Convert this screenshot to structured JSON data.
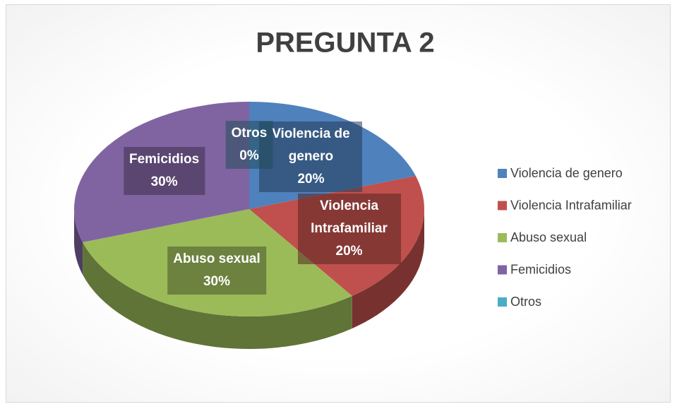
{
  "chart_data": {
    "type": "pie",
    "title": "PREGUNTA 2",
    "categories": [
      "Violencia de genero",
      "Violencia Intrafamiliar",
      "Abuso sexual",
      "Femicidios",
      "Otros"
    ],
    "values": [
      20,
      20,
      30,
      30,
      0
    ],
    "value_labels": [
      "20%",
      "20%",
      "30%",
      "30%",
      "0%"
    ],
    "colors": [
      "#4f81bd",
      "#c0504d",
      "#9bbb59",
      "#8064a2",
      "#4bacc6"
    ],
    "legend": "right"
  }
}
